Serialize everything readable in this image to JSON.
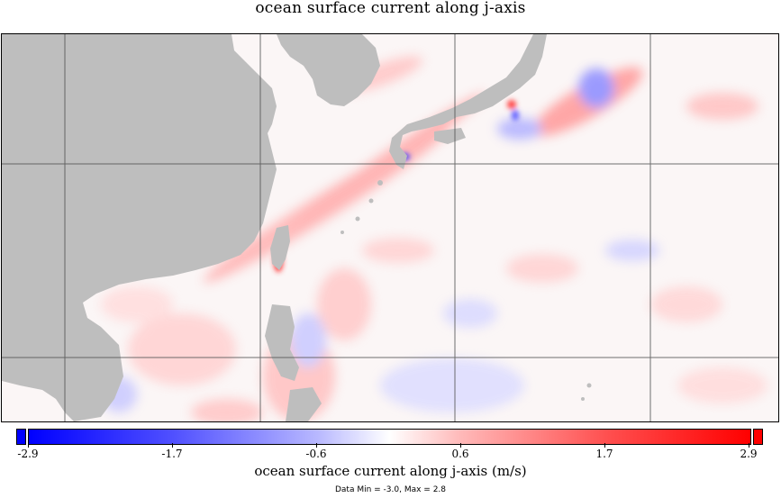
{
  "title": "ocean surface current along j-axis",
  "colorbar": {
    "title": "ocean surface current along j-axis (m/s)",
    "ticks": [
      "-2.9",
      "-1.7",
      "-0.6",
      "0.6",
      "1.7",
      "2.9"
    ],
    "min": -3.0,
    "max": 2.8,
    "minmax_text": "Data Min = -3.0, Max = 2.8",
    "colors": {
      "low": "#0000ff",
      "mid": "#ffffff",
      "high": "#ff0000",
      "land": "#bebebe"
    }
  },
  "map": {
    "grid": true,
    "land_color": "#bebebe"
  }
}
